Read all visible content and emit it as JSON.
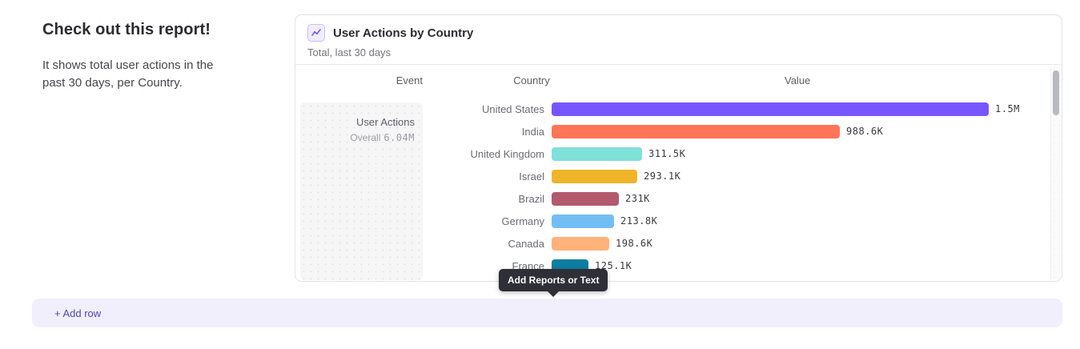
{
  "intro": {
    "heading": "Check out this report!",
    "description": "It shows total user actions in the past 30 days, per Country."
  },
  "card": {
    "title": "User Actions by Country",
    "subtitle": "Total, last 30 days",
    "icon": "line-chart-icon",
    "icon_color": "#7856ff"
  },
  "table": {
    "columns": {
      "event": "Event",
      "country": "Country",
      "value": "Value"
    },
    "event_cell": {
      "name": "User Actions",
      "overall_label": "Overall",
      "overall_value": "6.04M"
    }
  },
  "chart_data": {
    "type": "bar",
    "orientation": "horizontal",
    "title": "User Actions by Country",
    "subtitle": "Total, last 30 days",
    "series_name": "User Actions",
    "overall_total": "6.04M",
    "categories": [
      "United States",
      "India",
      "United Kingdom",
      "Israel",
      "Brazil",
      "Germany",
      "Canada",
      "France"
    ],
    "values": [
      1500000,
      988600,
      311500,
      293100,
      231000,
      213800,
      198600,
      125100
    ],
    "value_labels": [
      "1.5M",
      "988.6K",
      "311.5K",
      "293.1K",
      "231K",
      "213.8K",
      "198.6K",
      "125.1K"
    ],
    "colors": [
      "#7856ff",
      "#ff7557",
      "#80e1d9",
      "#f0b429",
      "#b2596e",
      "#72bef4",
      "#ffb27a",
      "#0d7ea0"
    ],
    "xlim": [
      0,
      1500000
    ],
    "legend": "none",
    "grid": "off"
  },
  "tooltip": {
    "label": "Add Reports or Text"
  },
  "footer": {
    "add_row_label": "+ Add row"
  },
  "scrollbar": {
    "thumb_color": "#b9b9c0"
  }
}
